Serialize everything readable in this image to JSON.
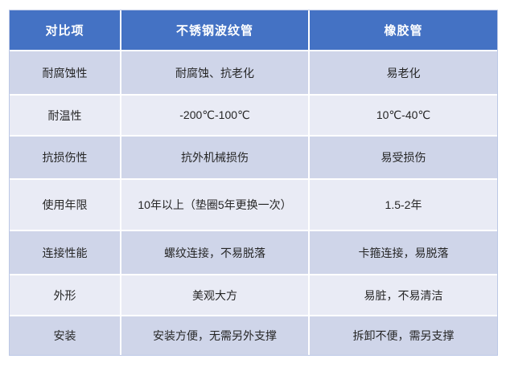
{
  "colors": {
    "header_bg": "#4472C4",
    "header_text": "#FFFFFF",
    "band_dark": "#CFD5E9",
    "band_light": "#E9EBF5",
    "grid_line": "#FFFFFF",
    "body_text": "#262626",
    "table_edge": "#BCC8E6"
  },
  "table": {
    "columns": [
      "对比项",
      "不锈钢波纹管",
      "橡胶管"
    ],
    "rows": [
      [
        "耐腐蚀性",
        "耐腐蚀、抗老化",
        "易老化"
      ],
      [
        "耐温性",
        "-200℃-100℃",
        "10℃-40℃"
      ],
      [
        "抗损伤性",
        "抗外机械损伤",
        "易受损伤"
      ],
      [
        "使用年限",
        "10年以上（垫圈5年更换一次）",
        "1.5-2年"
      ],
      [
        "连接性能",
        "螺纹连接，不易脱落",
        "卡箍连接，易脱落"
      ],
      [
        "外形",
        "美观大方",
        "易脏，不易清洁"
      ],
      [
        "安装",
        "安装方便，无需另外支撑",
        "拆卸不便，需另支撑"
      ]
    ]
  }
}
